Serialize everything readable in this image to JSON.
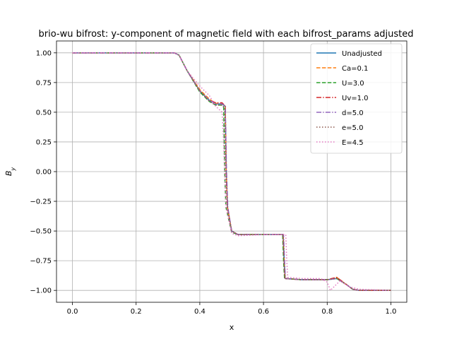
{
  "chart_data": {
    "type": "line",
    "title": "brio-wu bifrost: y-component of magnetic field with each bifrost_params adjusted",
    "xlabel": "x",
    "ylabel": "B_y",
    "xlim": [
      -0.05,
      1.05
    ],
    "ylim": [
      -1.1,
      1.1
    ],
    "xticks": [
      0.0,
      0.2,
      0.4,
      0.6,
      0.8,
      1.0
    ],
    "xtick_labels": [
      "0.0",
      "0.2",
      "0.4",
      "0.6",
      "0.8",
      "1.0"
    ],
    "yticks": [
      1.0,
      0.75,
      0.5,
      0.25,
      0.0,
      -0.25,
      -0.5,
      -0.75,
      -1.0
    ],
    "ytick_labels": [
      "1.00",
      "0.75",
      "0.50",
      "0.25",
      "0.00",
      "−0.25",
      "−0.50",
      "−0.75",
      "−1.00"
    ],
    "grid": true,
    "legend_position": "top-right",
    "series": [
      {
        "name": "Unadjusted",
        "color": "#1f77b4",
        "dash": "solid",
        "x": [
          0.0,
          0.32,
          0.335,
          0.36,
          0.4,
          0.43,
          0.45,
          0.47,
          0.48,
          0.483,
          0.487,
          0.5,
          0.52,
          0.6,
          0.662,
          0.665,
          0.668,
          0.72,
          0.8,
          0.83,
          0.86,
          0.88,
          0.9,
          1.0
        ],
        "y": [
          1.0,
          1.0,
          0.98,
          0.85,
          0.68,
          0.6,
          0.57,
          0.57,
          0.55,
          0.0,
          -0.3,
          -0.5,
          -0.53,
          -0.53,
          -0.53,
          -0.75,
          -0.9,
          -0.91,
          -0.91,
          -0.9,
          -0.95,
          -0.99,
          -1.0,
          -1.0
        ]
      },
      {
        "name": "Ca=0.1",
        "color": "#ff7f0e",
        "dash": "dashed",
        "x": [
          0.0,
          0.32,
          0.335,
          0.36,
          0.4,
          0.43,
          0.45,
          0.47,
          0.48,
          0.483,
          0.487,
          0.5,
          0.52,
          0.6,
          0.662,
          0.665,
          0.668,
          0.72,
          0.8,
          0.83,
          0.86,
          0.88,
          0.9,
          1.0
        ],
        "y": [
          1.0,
          1.0,
          0.98,
          0.85,
          0.69,
          0.61,
          0.575,
          0.575,
          0.55,
          0.0,
          -0.3,
          -0.5,
          -0.53,
          -0.53,
          -0.53,
          -0.75,
          -0.9,
          -0.91,
          -0.91,
          -0.89,
          -0.95,
          -0.99,
          -1.0,
          -1.0
        ]
      },
      {
        "name": "U=3.0",
        "color": "#2ca02c",
        "dash": "dashed",
        "x": [
          0.0,
          0.32,
          0.335,
          0.36,
          0.4,
          0.43,
          0.45,
          0.47,
          0.475,
          0.478,
          0.482,
          0.5,
          0.52,
          0.6,
          0.66,
          0.663,
          0.666,
          0.72,
          0.8,
          0.83,
          0.86,
          0.88,
          0.9,
          1.0
        ],
        "y": [
          1.0,
          1.0,
          0.98,
          0.85,
          0.67,
          0.59,
          0.56,
          0.56,
          0.54,
          0.0,
          -0.3,
          -0.51,
          -0.53,
          -0.53,
          -0.53,
          -0.75,
          -0.9,
          -0.91,
          -0.91,
          -0.9,
          -0.95,
          -0.99,
          -1.0,
          -1.0
        ]
      },
      {
        "name": "Uv=1.0",
        "color": "#d62728",
        "dash": "dashdot",
        "x": [
          0.0,
          0.32,
          0.335,
          0.36,
          0.4,
          0.43,
          0.45,
          0.47,
          0.48,
          0.483,
          0.487,
          0.5,
          0.52,
          0.6,
          0.662,
          0.665,
          0.668,
          0.72,
          0.8,
          0.83,
          0.86,
          0.88,
          0.9,
          1.0
        ],
        "y": [
          1.0,
          1.0,
          0.98,
          0.85,
          0.68,
          0.6,
          0.58,
          0.58,
          0.55,
          0.0,
          -0.3,
          -0.5,
          -0.53,
          -0.53,
          -0.53,
          -0.75,
          -0.9,
          -0.91,
          -0.91,
          -0.89,
          -0.95,
          -0.99,
          -1.0,
          -1.0
        ]
      },
      {
        "name": "d=5.0",
        "color": "#9467bd",
        "dash": "dashdot",
        "x": [
          0.0,
          0.32,
          0.335,
          0.36,
          0.4,
          0.43,
          0.45,
          0.47,
          0.48,
          0.484,
          0.488,
          0.5,
          0.52,
          0.6,
          0.663,
          0.666,
          0.669,
          0.72,
          0.8,
          0.83,
          0.86,
          0.88,
          0.9,
          1.0
        ],
        "y": [
          1.0,
          1.0,
          0.98,
          0.85,
          0.68,
          0.6,
          0.57,
          0.57,
          0.55,
          0.0,
          -0.3,
          -0.5,
          -0.53,
          -0.53,
          -0.53,
          -0.75,
          -0.9,
          -0.91,
          -0.91,
          -0.9,
          -0.95,
          -0.99,
          -1.0,
          -1.0
        ]
      },
      {
        "name": "e=5.0",
        "color": "#8c564b",
        "dash": "dotted",
        "x": [
          0.0,
          0.32,
          0.335,
          0.36,
          0.4,
          0.43,
          0.45,
          0.47,
          0.478,
          0.482,
          0.486,
          0.5,
          0.52,
          0.6,
          0.661,
          0.664,
          0.667,
          0.72,
          0.8,
          0.83,
          0.86,
          0.88,
          0.9,
          1.0
        ],
        "y": [
          1.0,
          1.0,
          0.98,
          0.85,
          0.68,
          0.59,
          0.56,
          0.56,
          0.54,
          0.0,
          -0.3,
          -0.5,
          -0.53,
          -0.53,
          -0.53,
          -0.75,
          -0.9,
          -0.91,
          -0.91,
          -0.9,
          -0.95,
          -0.99,
          -1.0,
          -1.0
        ]
      },
      {
        "name": "E=4.5",
        "color": "#e377c2",
        "dash": "dotted",
        "x": [
          0.0,
          0.32,
          0.335,
          0.36,
          0.4,
          0.43,
          0.45,
          0.47,
          0.474,
          0.478,
          0.482,
          0.5,
          0.52,
          0.6,
          0.67,
          0.673,
          0.676,
          0.72,
          0.78,
          0.8,
          0.81,
          0.84,
          0.87,
          0.9,
          1.0
        ],
        "y": [
          1.0,
          1.0,
          0.98,
          0.85,
          0.72,
          0.64,
          0.55,
          0.5,
          0.3,
          0.0,
          -0.3,
          -0.52,
          -0.54,
          -0.53,
          -0.53,
          -0.75,
          -0.89,
          -0.9,
          -0.9,
          -0.93,
          -1.0,
          -0.92,
          -0.97,
          -0.99,
          -1.0
        ]
      }
    ]
  }
}
